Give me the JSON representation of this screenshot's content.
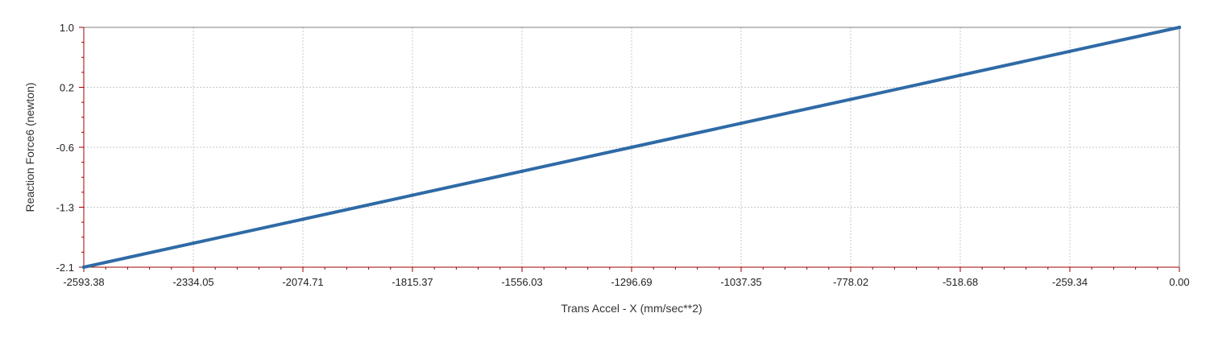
{
  "chart_data": {
    "type": "line",
    "title": "",
    "xlabel": "Trans Accel - X (mm/sec**2)",
    "ylabel": "Reaction Force6 (newton)",
    "xlim": [
      -2593.38,
      0.0
    ],
    "ylim": [
      -2.1,
      1.0
    ],
    "x_ticks": [
      "-2593.38",
      "-2334.05",
      "-2074.71",
      "-1815.37",
      "-1556.03",
      "-1296.69",
      "-1037.35",
      "-778.02",
      "-518.68",
      "-259.34",
      "0.00"
    ],
    "y_ticks": [
      "1.0",
      "0.2",
      "-0.6",
      "-1.3",
      "-2.1"
    ],
    "grid": true,
    "legend": "none",
    "series": [
      {
        "color": "#2f6aa6",
        "x": [
          -2593.38,
          -2334.05,
          -2074.71,
          -1815.37,
          -1556.03,
          -1296.69,
          -1037.35,
          -778.02,
          -518.68,
          -259.34,
          0.0
        ],
        "y": [
          -2.1,
          -1.79,
          -1.48,
          -1.17,
          -0.86,
          -0.55,
          -0.24,
          0.07,
          0.38,
          0.69,
          1.0
        ]
      }
    ],
    "colors": {
      "axis": "#a00000",
      "grid": "#c8c8c8",
      "frame": "#808080",
      "line": "#2f6aa6"
    }
  }
}
